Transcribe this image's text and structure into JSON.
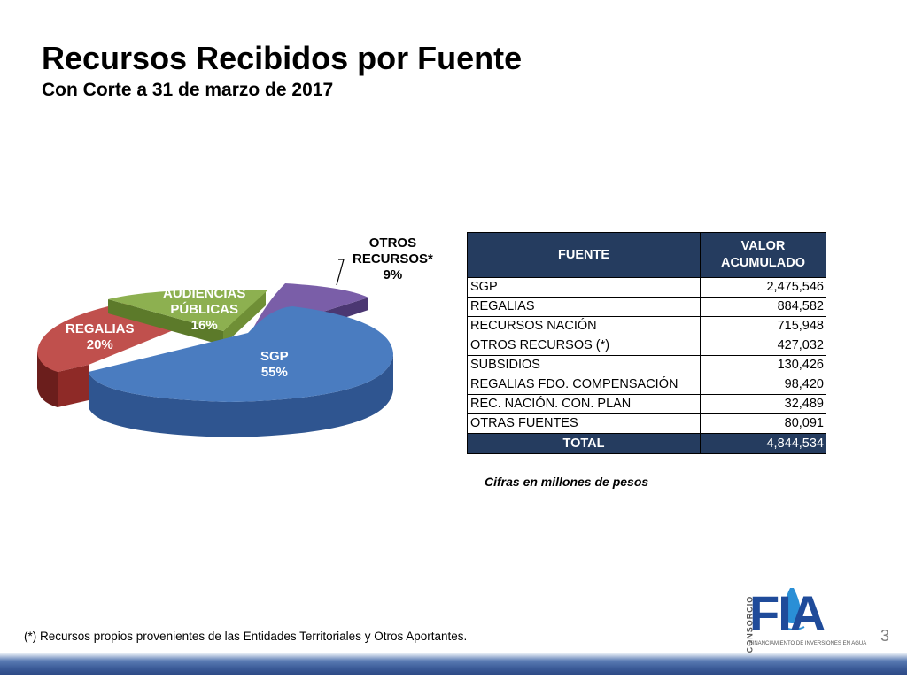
{
  "header": {
    "title": "Recursos Recibidos por Fuente",
    "subtitle": "Con Corte a 31 de marzo de 2017"
  },
  "chart_data": {
    "type": "pie",
    "slices": [
      {
        "label": "SGP",
        "percent": 55,
        "color": "#4a7cc0"
      },
      {
        "label": "REGALIAS",
        "percent": 20,
        "color": "#c0504d"
      },
      {
        "label": "AUDIENCIAS PÚBLICAS",
        "percent": 16,
        "color": "#8db050"
      },
      {
        "label": "OTROS RECURSOS*",
        "percent": 9,
        "color": "#7a5ea8"
      }
    ],
    "labels": {
      "sgp": [
        "SGP",
        "55%"
      ],
      "regalias": [
        "REGALIAS",
        "20%"
      ],
      "audiencias": [
        "AUDIENCIAS",
        "PÚBLICAS",
        "16%"
      ],
      "otros": [
        "OTROS",
        "RECURSOS*",
        "9%"
      ]
    }
  },
  "table": {
    "headers": [
      "FUENTE",
      "VALOR ACUMULADO"
    ],
    "rows": [
      {
        "fuente": "SGP",
        "valor": "2,475,546"
      },
      {
        "fuente": "REGALIAS",
        "valor": "884,582"
      },
      {
        "fuente": "RECURSOS NACIÓN",
        "valor": "715,948"
      },
      {
        "fuente": "OTROS RECURSOS (*)",
        "valor": "427,032"
      },
      {
        "fuente": "SUBSIDIOS",
        "valor": "130,426"
      },
      {
        "fuente": "REGALIAS FDO. COMPENSACIÓN",
        "valor": "98,420"
      },
      {
        "fuente": "REC. NACIÓN.  CON. PLAN",
        "valor": "32,489"
      },
      {
        "fuente": "OTRAS FUENTES",
        "valor": "80,091"
      }
    ],
    "total_label": "TOTAL",
    "total_value": "4,844,534"
  },
  "note": "Cifras en millones de pesos",
  "footnote": "(*) Recursos propios provenientes de  las Entidades Territoriales y Otros Aportantes.",
  "page_number": "3",
  "logo": {
    "word": "FIA",
    "side_text": "CONSORCIO",
    "tagline": "FINANCIAMIENTO DE INVERSIONES EN AGUA"
  }
}
